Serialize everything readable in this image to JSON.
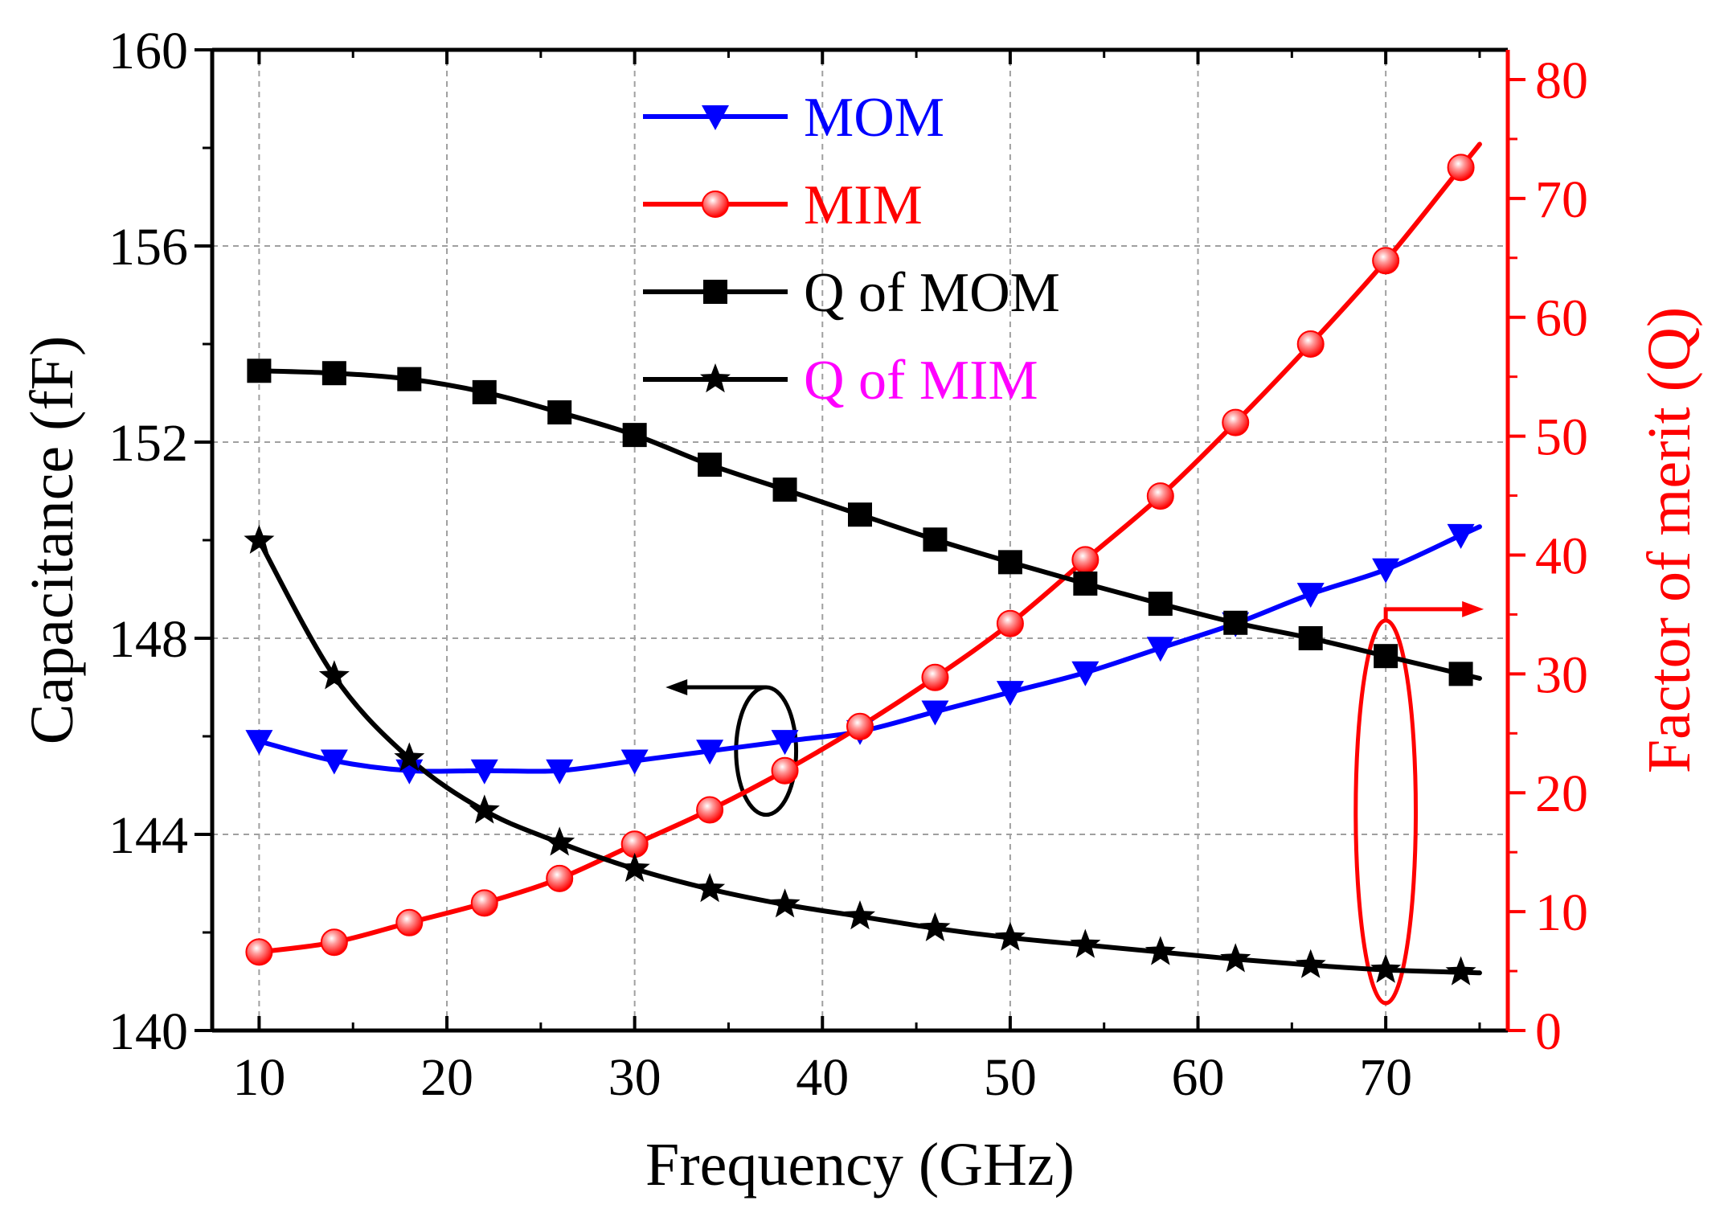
{
  "chart_data": {
    "type": "line",
    "xlabel": "Frequency (GHz)",
    "ylabel": "Capacitance (fF)",
    "y2label": "Factor of merit (Q)",
    "xlim": [
      7.5,
      76.5
    ],
    "ylim": [
      140,
      160
    ],
    "y2lim": [
      0,
      82.5
    ],
    "x_ticks": [
      10,
      20,
      30,
      40,
      50,
      60,
      70
    ],
    "y_ticks": [
      140,
      144,
      148,
      152,
      156,
      160
    ],
    "y2_ticks": [
      0,
      10,
      20,
      30,
      40,
      50,
      60,
      70,
      80
    ],
    "grid": true,
    "legend_position": "top-center",
    "colors": {
      "MOM": "#0000ff",
      "MIM": "#ff0000",
      "Q of MOM": "#000000",
      "Q of MIM": "#000000",
      "Q of MIM label": "#ff00ff",
      "right_axis": "#ff0000"
    },
    "x": [
      10,
      14,
      18,
      22,
      26,
      30,
      34,
      38,
      42,
      46,
      50,
      54,
      58,
      62,
      66,
      70,
      74
    ],
    "series": [
      {
        "name": "MOM",
        "axis": "left",
        "marker": "triangle-down",
        "color": "#0000ff",
        "text_color": "#0000ff",
        "values": [
          145.9,
          145.5,
          145.3,
          145.3,
          145.3,
          145.5,
          145.7,
          145.9,
          146.1,
          146.5,
          146.9,
          147.3,
          147.8,
          148.3,
          148.9,
          149.4,
          150.1
        ]
      },
      {
        "name": "MIM",
        "axis": "left",
        "marker": "circle",
        "color": "#ff0000",
        "text_color": "#ff0000",
        "values": [
          141.6,
          141.8,
          142.2,
          142.6,
          143.1,
          143.8,
          144.5,
          145.3,
          146.2,
          147.2,
          148.3,
          149.6,
          150.9,
          152.4,
          154.0,
          155.7,
          157.6
        ]
      },
      {
        "name": "Q of MOM",
        "axis": "right",
        "marker": "square",
        "color": "#000000",
        "text_color": "#000000",
        "values": [
          55.5,
          55.3,
          54.8,
          53.7,
          52.0,
          50.1,
          47.6,
          45.5,
          43.4,
          41.3,
          39.4,
          37.6,
          35.9,
          34.3,
          33.0,
          31.5,
          30.0
        ]
      },
      {
        "name": "Q of MIM",
        "axis": "right",
        "marker": "star",
        "color": "#000000",
        "text_color": "#ff00ff",
        "values": [
          41.2,
          29.8,
          22.9,
          18.5,
          15.8,
          13.6,
          11.9,
          10.6,
          9.6,
          8.6,
          7.8,
          7.2,
          6.6,
          6.0,
          5.5,
          5.1,
          4.9
        ]
      }
    ],
    "annotations": [
      {
        "target": "left",
        "color": "#000000",
        "ellipse_center": [
          37.0,
          145.7
        ],
        "ellipse_radius_x": 1.6,
        "ellipse_radius_y": 1.3
      },
      {
        "target": "right",
        "color": "#ff0000",
        "ellipse_center": [
          70.0,
          18.4
        ],
        "ellipse_radius_x": 1.6,
        "ellipse_radius_y": 16.1
      }
    ]
  }
}
